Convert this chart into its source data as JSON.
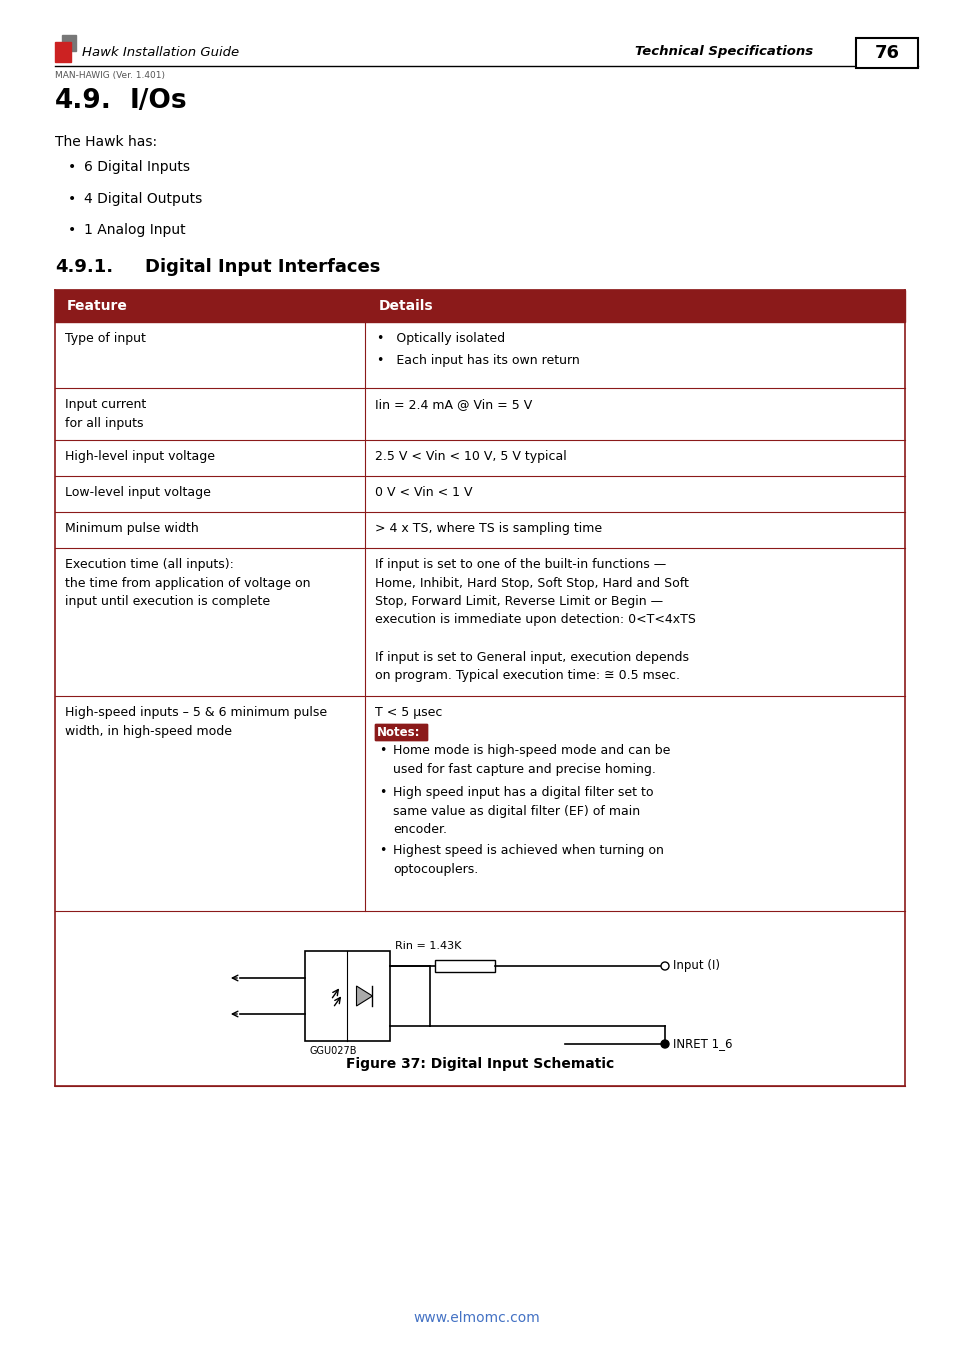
{
  "page_num": "76",
  "header_left": "Hawk Installation Guide",
  "header_right": "Technical Specifications",
  "header_sub": "MAN-HAWIG (Ver. 1.401)",
  "section_title": "4.9.   I/Os",
  "intro_text": "The Hawk has:",
  "bullet_items": [
    "6 Digital Inputs",
    "4 Digital Outputs",
    "1 Analog Input"
  ],
  "subsection_title": "4.9.1.",
  "subsection_title2": "Digital Input Interfaces",
  "table_header_bg": "#8B1A1A",
  "table_border_color": "#8B1A1A",
  "table_col1_header": "Feature",
  "table_col2_header": "Details",
  "figure_caption": "Figure 37: Digital Input Schematic",
  "footer_url": "www.elmomc.com",
  "bg_color": "#FFFFFF"
}
